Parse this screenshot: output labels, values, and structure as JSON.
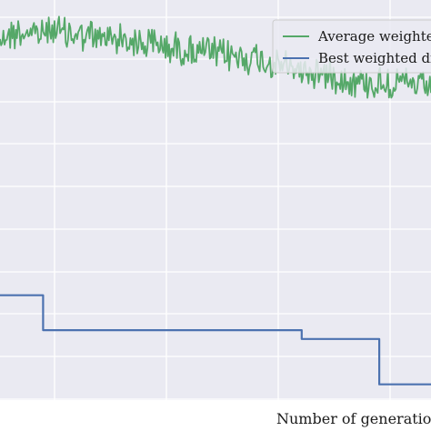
{
  "chart_data": {
    "type": "line",
    "title": "",
    "xlabel": "Number of generations c",
    "ylabel": "",
    "x_tick_labels": [],
    "y_tick_labels": [],
    "grid": true,
    "legend_position": "top-right",
    "series": [
      {
        "name": "Average weighted",
        "color": "#55a868",
        "style": "noisy",
        "values": [
          [
            0,
            0.36
          ],
          [
            0.03,
            0.34
          ],
          [
            0.06,
            0.33
          ],
          [
            0.09,
            0.35
          ],
          [
            0.12,
            0.31
          ],
          [
            0.15,
            0.34
          ],
          [
            0.18,
            0.35
          ],
          [
            0.21,
            0.36
          ],
          [
            0.24,
            0.37
          ],
          [
            0.27,
            0.36
          ],
          [
            0.3,
            0.38
          ],
          [
            0.33,
            0.4
          ],
          [
            0.36,
            0.4
          ],
          [
            0.39,
            0.42
          ],
          [
            0.42,
            0.43
          ],
          [
            0.45,
            0.44
          ],
          [
            0.48,
            0.45
          ],
          [
            0.51,
            0.47
          ],
          [
            0.54,
            0.47
          ],
          [
            0.57,
            0.48
          ],
          [
            0.6,
            0.49
          ],
          [
            0.63,
            0.52
          ],
          [
            0.66,
            0.53
          ],
          [
            0.69,
            0.55
          ],
          [
            0.72,
            0.56
          ],
          [
            0.75,
            0.57
          ],
          [
            0.78,
            0.58
          ],
          [
            0.81,
            0.61
          ],
          [
            0.84,
            0.62
          ],
          [
            0.87,
            0.63
          ],
          [
            0.9,
            0.62
          ],
          [
            0.93,
            0.63
          ],
          [
            0.96,
            0.64
          ],
          [
            1.0,
            0.66
          ]
        ]
      },
      {
        "name": "Best weighted dis",
        "color": "#4c72b0",
        "style": "step",
        "values": [
          [
            0,
            1.84
          ],
          [
            0.1,
            1.84
          ],
          [
            0.1,
            2.04
          ],
          [
            0.65,
            2.04
          ],
          [
            0.7,
            2.04
          ],
          [
            0.7,
            2.09
          ],
          [
            0.88,
            2.09
          ],
          [
            0.88,
            2.35
          ],
          [
            1.0,
            2.35
          ]
        ]
      }
    ],
    "xlim": [
      0,
      1
    ],
    "ylim": [
      0.15,
      2.44
    ],
    "background": "#eaeaf2",
    "grid_color": "#ffffff"
  }
}
